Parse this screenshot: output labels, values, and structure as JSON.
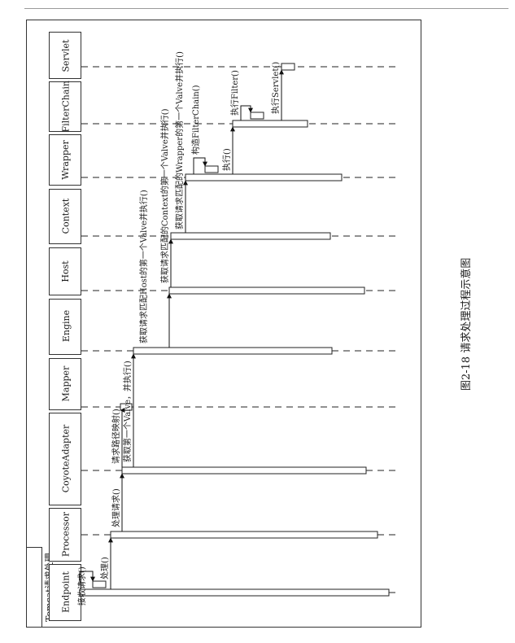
{
  "frame_title": "Tomcat请求处理",
  "caption": "图2-18   请求处理过程示意图",
  "participants": [
    "Endpoint",
    "Processor",
    "CoyoteAdapter",
    "Mapper",
    "Engine",
    "Host",
    "Context",
    "Wrapper",
    "FilterChain",
    "Servlet"
  ],
  "messages": [
    {
      "id": "m1",
      "text": "接收请求()",
      "kind": "self"
    },
    {
      "id": "m2",
      "text": "处理()",
      "kind": "call"
    },
    {
      "id": "m3",
      "text": "处理请求()",
      "kind": "call"
    },
    {
      "id": "m4",
      "text": "请求路径映射()",
      "kind": "self"
    },
    {
      "id": "m5",
      "text": "获取第一个Valve，并执行()",
      "kind": "call"
    },
    {
      "id": "m6",
      "text": "获取请求匹配Host的第一个Valve并执行()",
      "kind": "call"
    },
    {
      "id": "m7",
      "text": "获取请求匹配的Context的第一个Valve并执行()",
      "kind": "call"
    },
    {
      "id": "m8",
      "text": "获取请求匹配的Wrapper的第一个Valve并执行()",
      "kind": "call"
    },
    {
      "id": "m9",
      "text": "构造FilterChain()",
      "kind": "self"
    },
    {
      "id": "m10",
      "text": "执行()",
      "kind": "call"
    },
    {
      "id": "m11",
      "text": "执行Filter()",
      "kind": "self"
    },
    {
      "id": "m12",
      "text": "执行Servlet()",
      "kind": "call"
    }
  ]
}
